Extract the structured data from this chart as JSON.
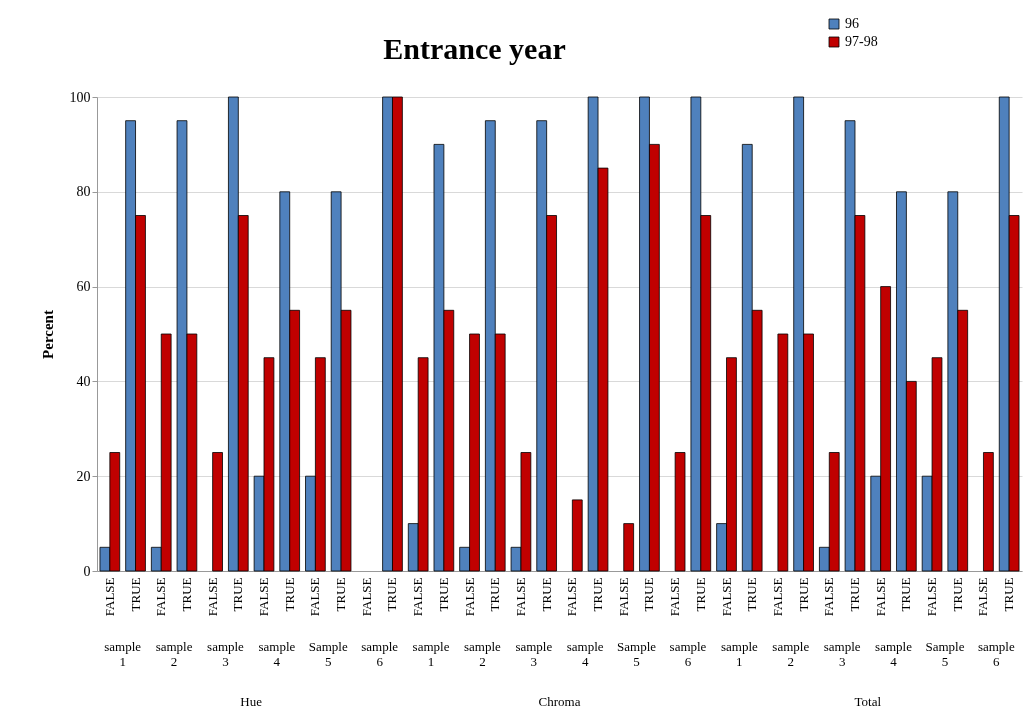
{
  "chart_data": {
    "type": "bar",
    "title": "Entrance year",
    "ylabel": "Percent",
    "categories": [
      "FALSE",
      "TRUE",
      "FALSE",
      "TRUE",
      "FALSE",
      "TRUE",
      "FALSE",
      "TRUE",
      "FALSE",
      "TRUE",
      "FALSE",
      "TRUE",
      "FALSE",
      "TRUE",
      "FALSE",
      "TRUE",
      "FALSE",
      "TRUE",
      "FALSE",
      "TRUE",
      "FALSE",
      "TRUE",
      "FALSE",
      "TRUE",
      "FALSE",
      "TRUE",
      "FALSE",
      "TRUE",
      "FALSE",
      "TRUE",
      "FALSE",
      "TRUE",
      "FALSE",
      "TRUE",
      "FALSE",
      "TRUE"
    ],
    "series": [
      {
        "name": "96",
        "color": "#4f81bd",
        "values": [
          5,
          95,
          5,
          95,
          null,
          100,
          20,
          80,
          20,
          80,
          null,
          100,
          10,
          90,
          5,
          95,
          5,
          95,
          null,
          100,
          null,
          100,
          null,
          100,
          10,
          90,
          null,
          100,
          5,
          95,
          20,
          80,
          20,
          80,
          null,
          100
        ]
      },
      {
        "name": "97-98",
        "color": "#c00000",
        "values": [
          25,
          75,
          50,
          50,
          25,
          75,
          45,
          55,
          45,
          55,
          null,
          100,
          45,
          55,
          50,
          50,
          25,
          75,
          15,
          85,
          10,
          90,
          25,
          75,
          45,
          55,
          50,
          50,
          25,
          75,
          60,
          40,
          45,
          55,
          25,
          75
        ]
      }
    ],
    "annotations": [
      "sample 1",
      "sample 2",
      "sample 3",
      "sample 4",
      "Sample 5",
      "sample 6",
      "sample 1",
      "sample 2",
      "sample 3",
      "sample 4",
      "Sample 5",
      "sample 6",
      "sample 1",
      "sample 2",
      "sample 3",
      "sample 4",
      "Sample 5",
      "sample 6",
      "Hue",
      "Chroma",
      "Total"
    ],
    "ylim": [
      0,
      100
    ],
    "yticks": [
      0,
      20,
      40,
      60,
      80,
      100
    ],
    "grid": "y",
    "legend": "top right"
  }
}
